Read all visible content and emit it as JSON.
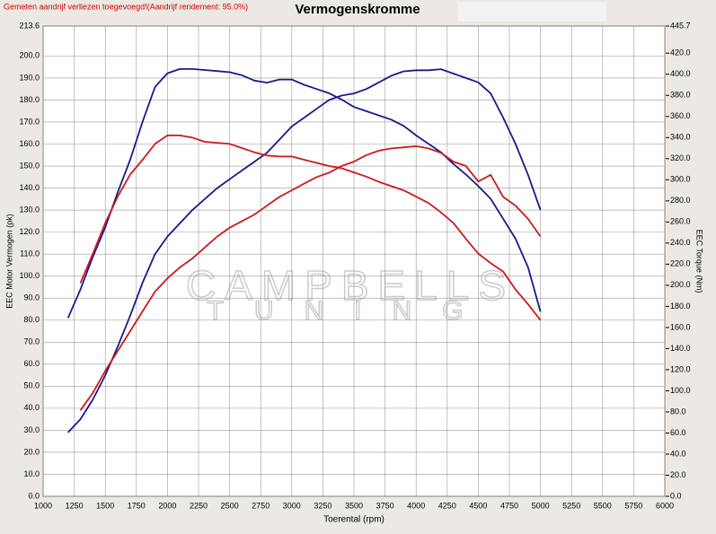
{
  "chart_data": {
    "type": "line",
    "title": "Vermogenskromme",
    "note": "Gemeten aandrijf verliezen toegevoegd!(Aandrijf rendement: 95.0%)",
    "watermark": [
      "CAMPBELLS",
      "TUNING"
    ],
    "xlabel": "Toerental (rpm)",
    "ylabel": "EEC Motor Vermogen (pk)",
    "y2label": "EEC Torque (Nm)",
    "grid": true,
    "xlim": [
      1000,
      6000
    ],
    "xticks": [
      1000,
      1250,
      1500,
      1750,
      2000,
      2250,
      2500,
      2750,
      3000,
      3250,
      3500,
      3750,
      4000,
      4250,
      4500,
      4750,
      5000,
      5250,
      5500,
      5750,
      6000
    ],
    "ylim": [
      0,
      213.6
    ],
    "yticks": [
      {
        "value": 0,
        "label": "0.0"
      },
      {
        "value": 10,
        "label": "10.0"
      },
      {
        "value": 20,
        "label": "20.0"
      },
      {
        "value": 30,
        "label": "30.0"
      },
      {
        "value": 40,
        "label": "40.0"
      },
      {
        "value": 50,
        "label": "50.0"
      },
      {
        "value": 60,
        "label": "60.0"
      },
      {
        "value": 70,
        "label": "70.0"
      },
      {
        "value": 80,
        "label": "80.0"
      },
      {
        "value": 90,
        "label": "90.0"
      },
      {
        "value": 100,
        "label": "100.0"
      },
      {
        "value": 110,
        "label": "110.0"
      },
      {
        "value": 120,
        "label": "120.0"
      },
      {
        "value": 130,
        "label": "130.0"
      },
      {
        "value": 140,
        "label": "140.0"
      },
      {
        "value": 150,
        "label": "150.0"
      },
      {
        "value": 160,
        "label": "160.0"
      },
      {
        "value": 170,
        "label": "170.0"
      },
      {
        "value": 180,
        "label": "180.0"
      },
      {
        "value": 190,
        "label": "190.0"
      },
      {
        "value": 200,
        "label": "200.0"
      },
      213.6
    ],
    "y2lim": [
      0,
      445.7
    ],
    "y2ticks": [
      {
        "value": 0,
        "label": "0.0"
      },
      {
        "value": 20,
        "label": "20.0"
      },
      {
        "value": 40,
        "label": "40.0"
      },
      {
        "value": 60,
        "label": "60.0"
      },
      {
        "value": 80,
        "label": "80.0"
      },
      {
        "value": 100,
        "label": "100.0"
      },
      {
        "value": 120,
        "label": "120.0"
      },
      {
        "value": 140,
        "label": "140.0"
      },
      {
        "value": 160,
        "label": "160.0"
      },
      {
        "value": 180,
        "label": "180.0"
      },
      {
        "value": 200,
        "label": "200.0"
      },
      {
        "value": 220,
        "label": "220.0"
      },
      {
        "value": 240,
        "label": "240.0"
      },
      {
        "value": 260,
        "label": "260.0"
      },
      {
        "value": 280,
        "label": "280.0"
      },
      {
        "value": 300,
        "label": "300.0"
      },
      {
        "value": 320,
        "label": "320.0"
      },
      {
        "value": 340,
        "label": "340.0"
      },
      {
        "value": 360,
        "label": "360.0"
      },
      {
        "value": 380,
        "label": "380.0"
      },
      {
        "value": 400,
        "label": "400.0"
      },
      {
        "value": 420,
        "label": "420.0"
      },
      445.7
    ],
    "x": [
      1200,
      1300,
      1400,
      1500,
      1600,
      1700,
      1800,
      1900,
      2000,
      2100,
      2200,
      2300,
      2400,
      2500,
      2600,
      2700,
      2800,
      2900,
      3000,
      3100,
      3200,
      3300,
      3400,
      3500,
      3600,
      3700,
      3800,
      3900,
      4000,
      4100,
      4200,
      4300,
      4400,
      4500,
      4600,
      4700,
      4800,
      4900,
      5000
    ],
    "series": [
      {
        "color": "#1a1a8c",
        "axis": "y2",
        "values": [
          169,
          196,
          227,
          255,
          288,
          319,
          355,
          388,
          401,
          405,
          405,
          404,
          403,
          402,
          399,
          394,
          392,
          395,
          395,
          390,
          386,
          382,
          376,
          369,
          365,
          361,
          357,
          351,
          342,
          334,
          326,
          315,
          305,
          294,
          282,
          263,
          244,
          217,
          175
        ]
      },
      {
        "color": "#1a1a8c",
        "values": [
          29,
          35,
          44,
          55,
          68,
          82,
          97,
          110,
          118,
          124,
          130,
          135,
          140,
          144,
          148,
          152,
          156,
          162,
          168,
          172,
          176,
          180,
          182,
          183,
          185,
          188,
          191,
          193,
          193.5,
          193.5,
          194,
          192,
          190,
          188,
          183,
          172,
          160,
          146,
          130
        ]
      },
      {
        "color": "#cc1a1a",
        "axis": "y2",
        "values": [
          null,
          202,
          230,
          259,
          284,
          305,
          319,
          334,
          342,
          342,
          340,
          336,
          335,
          334,
          330,
          326,
          323,
          322,
          322,
          319,
          316,
          313,
          311,
          307,
          303,
          298,
          294,
          290,
          284,
          278,
          269,
          259,
          244,
          230,
          221,
          213,
          196,
          182,
          167
        ]
      },
      {
        "color": "#cc1a1a",
        "values": [
          null,
          39,
          47,
          57,
          66,
          75,
          84,
          93,
          99,
          104,
          108,
          113,
          118,
          122,
          125,
          128,
          132,
          136,
          139,
          142,
          145,
          147,
          150,
          152,
          155,
          157,
          158,
          158.5,
          159,
          158,
          156,
          152,
          150,
          143,
          146,
          136,
          132,
          126,
          118
        ]
      }
    ]
  }
}
